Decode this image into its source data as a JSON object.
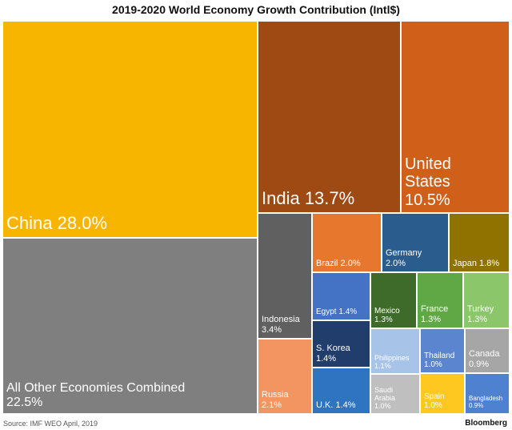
{
  "chart_data": {
    "type": "treemap",
    "title": "2019-2020 World Economy Growth Contribution (Intl$)",
    "unit": "%",
    "items": [
      {
        "name": "China",
        "label": "China 28.0%",
        "value": 28.0,
        "color": "#F7B500"
      },
      {
        "name": "All Other Economies Combined",
        "label": "All Other Economies Combined\n22.5%",
        "value": 22.5,
        "color": "#7F7F7F"
      },
      {
        "name": "India",
        "label": "India 13.7%",
        "value": 13.7,
        "color": "#9E4A12"
      },
      {
        "name": "United States",
        "label": "United\nStates\n10.5%",
        "value": 10.5,
        "color": "#D05F1A"
      },
      {
        "name": "Indonesia",
        "label": "Indonesia\n3.4%",
        "value": 3.4,
        "color": "#606060"
      },
      {
        "name": "Russia",
        "label": "Russia\n2.1%",
        "value": 2.1,
        "color": "#F29560"
      },
      {
        "name": "Brazil",
        "label": "Brazil 2.0%",
        "value": 2.0,
        "color": "#E8772E"
      },
      {
        "name": "Germany",
        "label": "Germany\n2.0%",
        "value": 2.0,
        "color": "#2A5C8E"
      },
      {
        "name": "Japan",
        "label": "Japan 1.8%",
        "value": 1.8,
        "color": "#8F7200"
      },
      {
        "name": "Egypt",
        "label": "Egypt 1.4%",
        "value": 1.4,
        "color": "#4472C4"
      },
      {
        "name": "S. Korea",
        "label": "S. Korea\n1.4%",
        "value": 1.4,
        "color": "#203D6B"
      },
      {
        "name": "U.K.",
        "label": "U.K. 1.4%",
        "value": 1.4,
        "color": "#2E74C0"
      },
      {
        "name": "Mexico",
        "label": "Mexico\n1.3%",
        "value": 1.3,
        "color": "#3E6B2A"
      },
      {
        "name": "France",
        "label": "France\n1.3%",
        "value": 1.3,
        "color": "#5FA845"
      },
      {
        "name": "Turkey",
        "label": "Turkey\n1.3%",
        "value": 1.3,
        "color": "#8CC66A"
      },
      {
        "name": "Philippines",
        "label": "Philippines\n1.1%",
        "value": 1.1,
        "color": "#A7C4E8"
      },
      {
        "name": "Thailand",
        "label": "Thailand\n1.0%",
        "value": 1.0,
        "color": "#5B86CF"
      },
      {
        "name": "Canada",
        "label": "Canada\n0.9%",
        "value": 0.9,
        "color": "#A6A6A6"
      },
      {
        "name": "Saudi Arabia",
        "label": "Saudi\nArabia\n1.0%",
        "value": 1.0,
        "color": "#BFBFBF"
      },
      {
        "name": "Spain",
        "label": "Spain\n1.0%",
        "value": 1.0,
        "color": "#FFC820"
      },
      {
        "name": "Bangladesh",
        "label": "Bangladesh\n0.9%",
        "value": 0.9,
        "color": "#4F81D1"
      }
    ]
  },
  "footer": {
    "source": "Source: IMF WEO April, 2019",
    "brand": "Bloomberg"
  }
}
